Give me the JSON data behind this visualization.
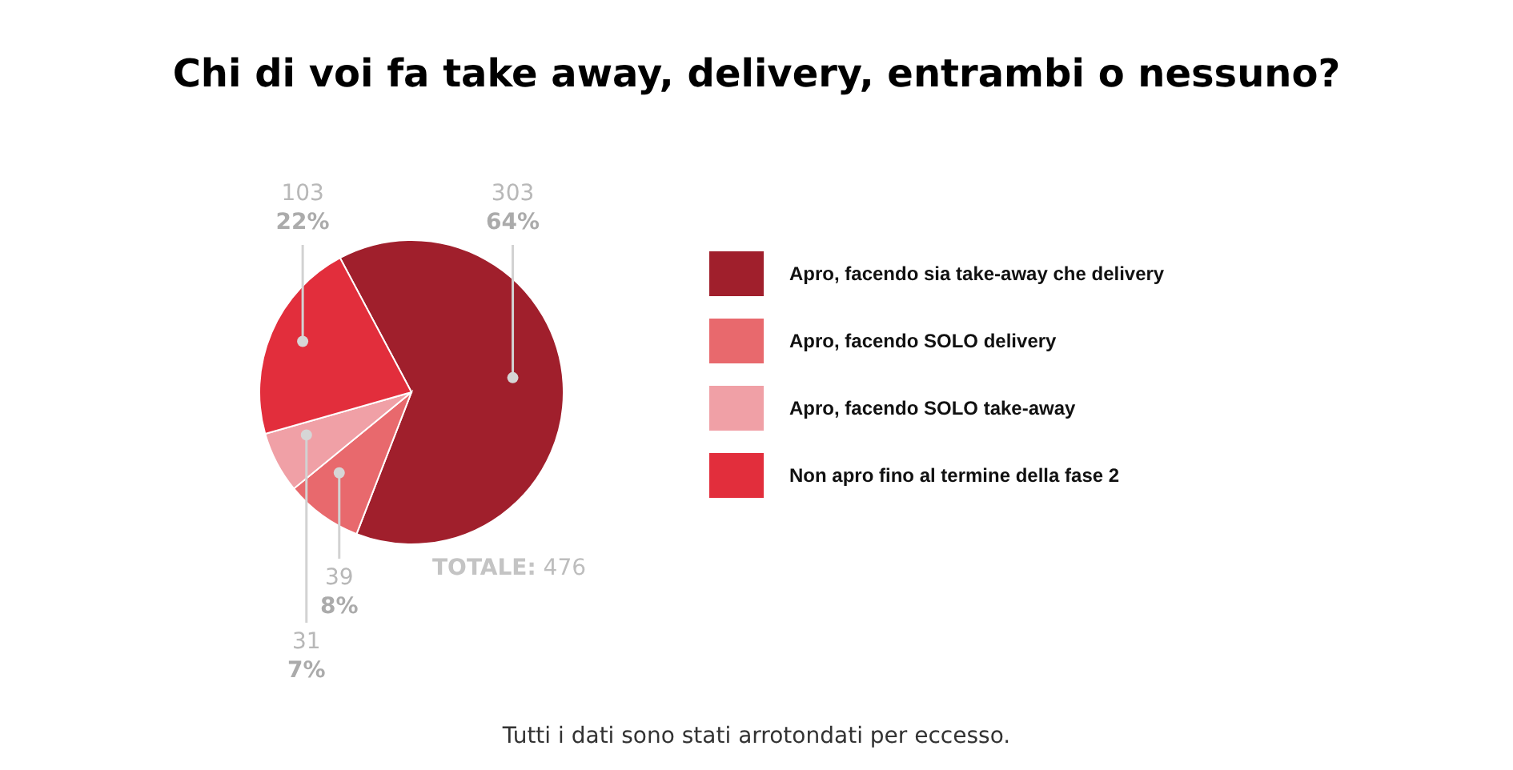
{
  "chart_data": {
    "type": "pie",
    "title": "Chi di voi fa take away, delivery, entrambi o nessuno?",
    "categories": [
      "Apro, facendo sia take-away che delivery",
      "Apro, facendo SOLO delivery",
      "Apro, facendo SOLO take-away",
      "Non apro fino al termine della fase 2"
    ],
    "values": [
      303,
      39,
      31,
      103
    ],
    "colors": [
      "#a01f2c",
      "#e8696d",
      "#f0a0a6",
      "#e22e3c"
    ],
    "value_labels": [
      "303\n64%",
      "39\n8%",
      "31\n7%",
      "103\n22%"
    ],
    "legend": "right",
    "annotations": [
      "TOTALE: 476",
      "Tutti i dati sono stati arrotondati per eccesso."
    ]
  }
}
